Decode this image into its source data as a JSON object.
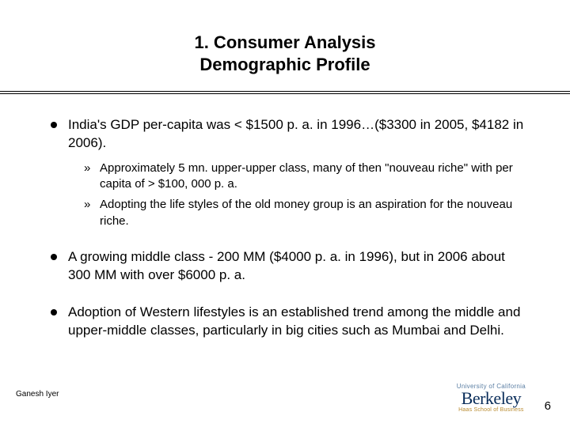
{
  "title": {
    "line1": "1. Consumer Analysis",
    "line2": "Demographic Profile"
  },
  "bullets": [
    {
      "text": "India's GDP per-capita was < $1500 p. a. in 1996…($3300 in 2005, $4182 in 2006).",
      "sub": [
        "Approximately 5 mn. upper-upper class, many of then \"nouveau riche\" with per capita of > $100, 000 p. a.",
        "Adopting the life styles of the old money group is an aspiration for the nouveau riche."
      ]
    },
    {
      "text": "A growing middle class - 200 MM ($4000 p. a. in 1996), but in 2006 about 300 MM with over $6000 p. a.",
      "sub": []
    },
    {
      "text": "Adoption of  Western lifestyles is an established trend among the middle and upper-middle classes, particularly in big cities such as Mumbai and Delhi.",
      "sub": []
    }
  ],
  "footer": {
    "author": "Ganesh Iyer",
    "page_number": "6",
    "logo_top": "University of California",
    "logo_main": "Berkeley",
    "logo_sub": "Haas School of Business"
  },
  "style": {
    "title_fontsize": 22,
    "body_fontsize": 17,
    "sub_fontsize": 15,
    "text_color": "#000000",
    "background_color": "#ffffff",
    "logo_blue": "#0a2d5a",
    "logo_gold": "#b88a2e",
    "logo_light_blue": "#5a7ea3"
  }
}
